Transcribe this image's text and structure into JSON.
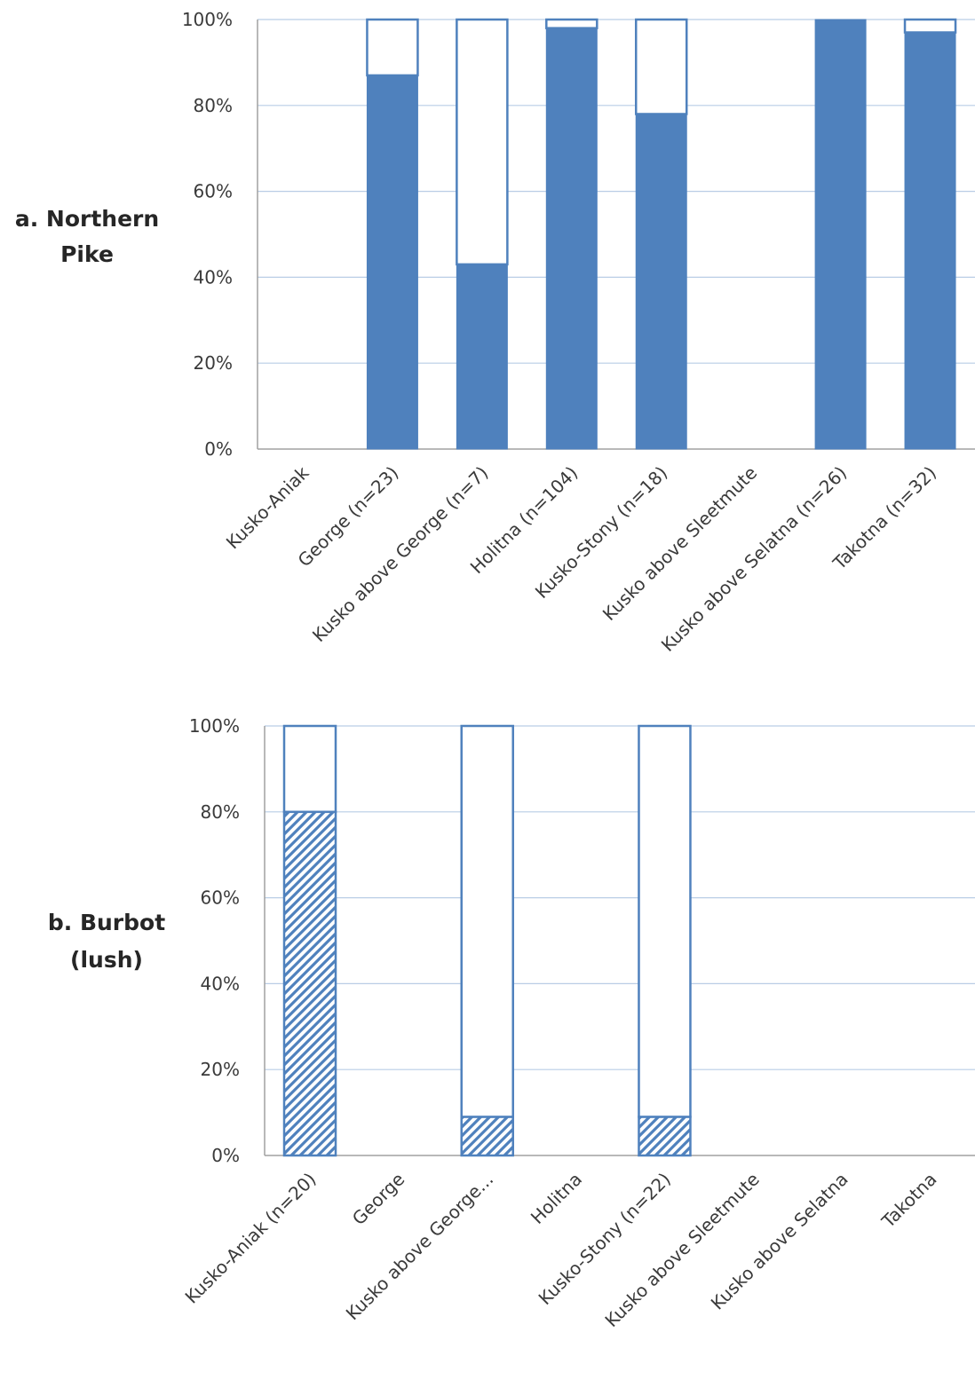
{
  "colors": {
    "fill": "#4f81bd",
    "outline": "#4f81bd",
    "grid": "#b9cde5",
    "axis": "#a0a0a0",
    "text": "#3a3a3a"
  },
  "chart_data": [
    {
      "type": "bar",
      "stacked": true,
      "panel_label": [
        "a.  Northern",
        "Pike"
      ],
      "categories": [
        "Kusko-Aniak",
        "George (n=23)",
        "Kusko above George (n=7)",
        "Holitna (n=104)",
        "Kusko-Stony (n=18)",
        "Kusko above Sleetmute",
        "Kusko above Selatna (n=26)",
        "Takotna (n=32)"
      ],
      "series": [
        {
          "fill": "solid",
          "values": [
            null,
            87,
            43,
            98,
            78,
            null,
            100,
            97
          ]
        },
        {
          "fill": "none",
          "values": [
            null,
            13,
            57,
            2,
            22,
            null,
            0,
            3
          ]
        }
      ],
      "ylim": [
        0,
        100
      ],
      "yticks": [
        "0%",
        "20%",
        "40%",
        "60%",
        "80%",
        "100%"
      ],
      "grid": true,
      "legend": "none"
    },
    {
      "type": "bar",
      "stacked": true,
      "panel_label": [
        "b.  Burbot",
        "(lush)"
      ],
      "categories": [
        "Kusko-Aniak (n=20)",
        "George",
        "Kusko above George...",
        "Holitna",
        "Kusko-Stony (n=22)",
        "Kusko above Sleetmute",
        "Kusko above Selatna",
        "Takotna"
      ],
      "series": [
        {
          "fill": "hatched",
          "values": [
            80,
            null,
            9,
            null,
            9,
            null,
            null,
            null
          ]
        },
        {
          "fill": "none",
          "values": [
            20,
            null,
            91,
            null,
            91,
            null,
            null,
            null
          ]
        }
      ],
      "ylim": [
        0,
        100
      ],
      "yticks": [
        "0%",
        "20%",
        "40%",
        "60%",
        "80%",
        "100%"
      ],
      "grid": true,
      "legend": "none"
    }
  ]
}
